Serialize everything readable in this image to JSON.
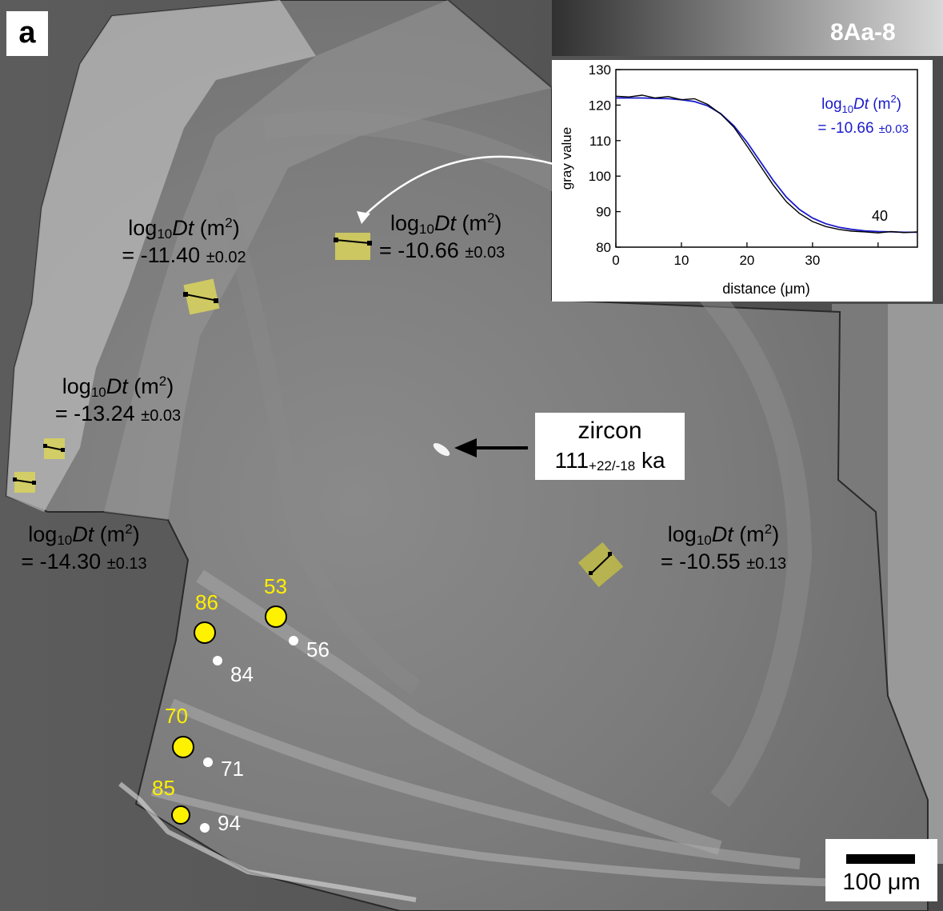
{
  "panel_letter": "a",
  "sample_id": "8Aa-8",
  "annotations": {
    "dt_label": "log",
    "dt_sub": "10",
    "dt_var": "Dt",
    "dt_unit_open": " (m",
    "dt_unit_sup": "2",
    "dt_unit_close": ")",
    "a1": {
      "value": "= -11.40",
      "err": "±0.02"
    },
    "a2": {
      "value": "= -10.66",
      "err": "±0.03"
    },
    "a3": {
      "value": "= -13.24",
      "err": "±0.03"
    },
    "a4": {
      "value": "= -14.30",
      "err": "±0.13"
    },
    "a5": {
      "value": "= -10.55",
      "err": "±0.13"
    }
  },
  "zircon": {
    "label": "zircon",
    "age": "111",
    "age_err": "+22/-18",
    "age_unit": "ka"
  },
  "spots": {
    "yellow": [
      "86",
      "53",
      "70",
      "85"
    ],
    "white": [
      "84",
      "56",
      "71",
      "94"
    ]
  },
  "scale_bar": {
    "label": "100 μm"
  },
  "inset": {
    "ylabel": "gray value",
    "xlabel": "distance (μm)",
    "annotation_line1": "log",
    "annotation_sub": "10",
    "annotation_var": "Dt",
    "annotation_unit": " (m",
    "annotation_sup": "2",
    "annotation_close": ")",
    "annotation_line2": "= -10.66",
    "annotation_err": "±0.03",
    "extra_label": "40",
    "colors": {
      "data": "#000000",
      "fit": "#1a1acc",
      "annotation": "#1a1acc"
    }
  },
  "chart_data": {
    "type": "line",
    "xlabel": "distance (μm)",
    "ylabel": "gray value",
    "xlim": [
      0,
      46
    ],
    "ylim": [
      80,
      130
    ],
    "xticks": [
      0,
      10,
      20,
      30
    ],
    "yticks": [
      80,
      90,
      100,
      110,
      120,
      130
    ],
    "series": [
      {
        "x": [
          0,
          2,
          4,
          6,
          8,
          10,
          12,
          14,
          16,
          18,
          20,
          22,
          24,
          26,
          28,
          30,
          32,
          34,
          36,
          38,
          40,
          42,
          44,
          46
        ],
        "values": [
          122.5,
          122.3,
          122.8,
          122.0,
          122.4,
          121.5,
          121.8,
          120.2,
          117.5,
          113.8,
          108.5,
          103.0,
          97.5,
          92.8,
          89.5,
          87.2,
          85.8,
          85.0,
          84.5,
          84.3,
          84.0,
          84.4,
          84.1,
          84.3
        ]
      },
      {
        "x": [
          0,
          2,
          4,
          6,
          8,
          10,
          12,
          14,
          16,
          18,
          20,
          22,
          24,
          26,
          28,
          30,
          32,
          34,
          36,
          38,
          40,
          42,
          44,
          46
        ],
        "values": [
          122.0,
          122.0,
          122.0,
          121.9,
          121.8,
          121.5,
          121.0,
          119.8,
          117.6,
          114.2,
          109.6,
          104.2,
          98.8,
          94.1,
          90.6,
          88.2,
          86.6,
          85.6,
          85.0,
          84.6,
          84.4,
          84.3,
          84.2,
          84.2
        ]
      }
    ]
  }
}
